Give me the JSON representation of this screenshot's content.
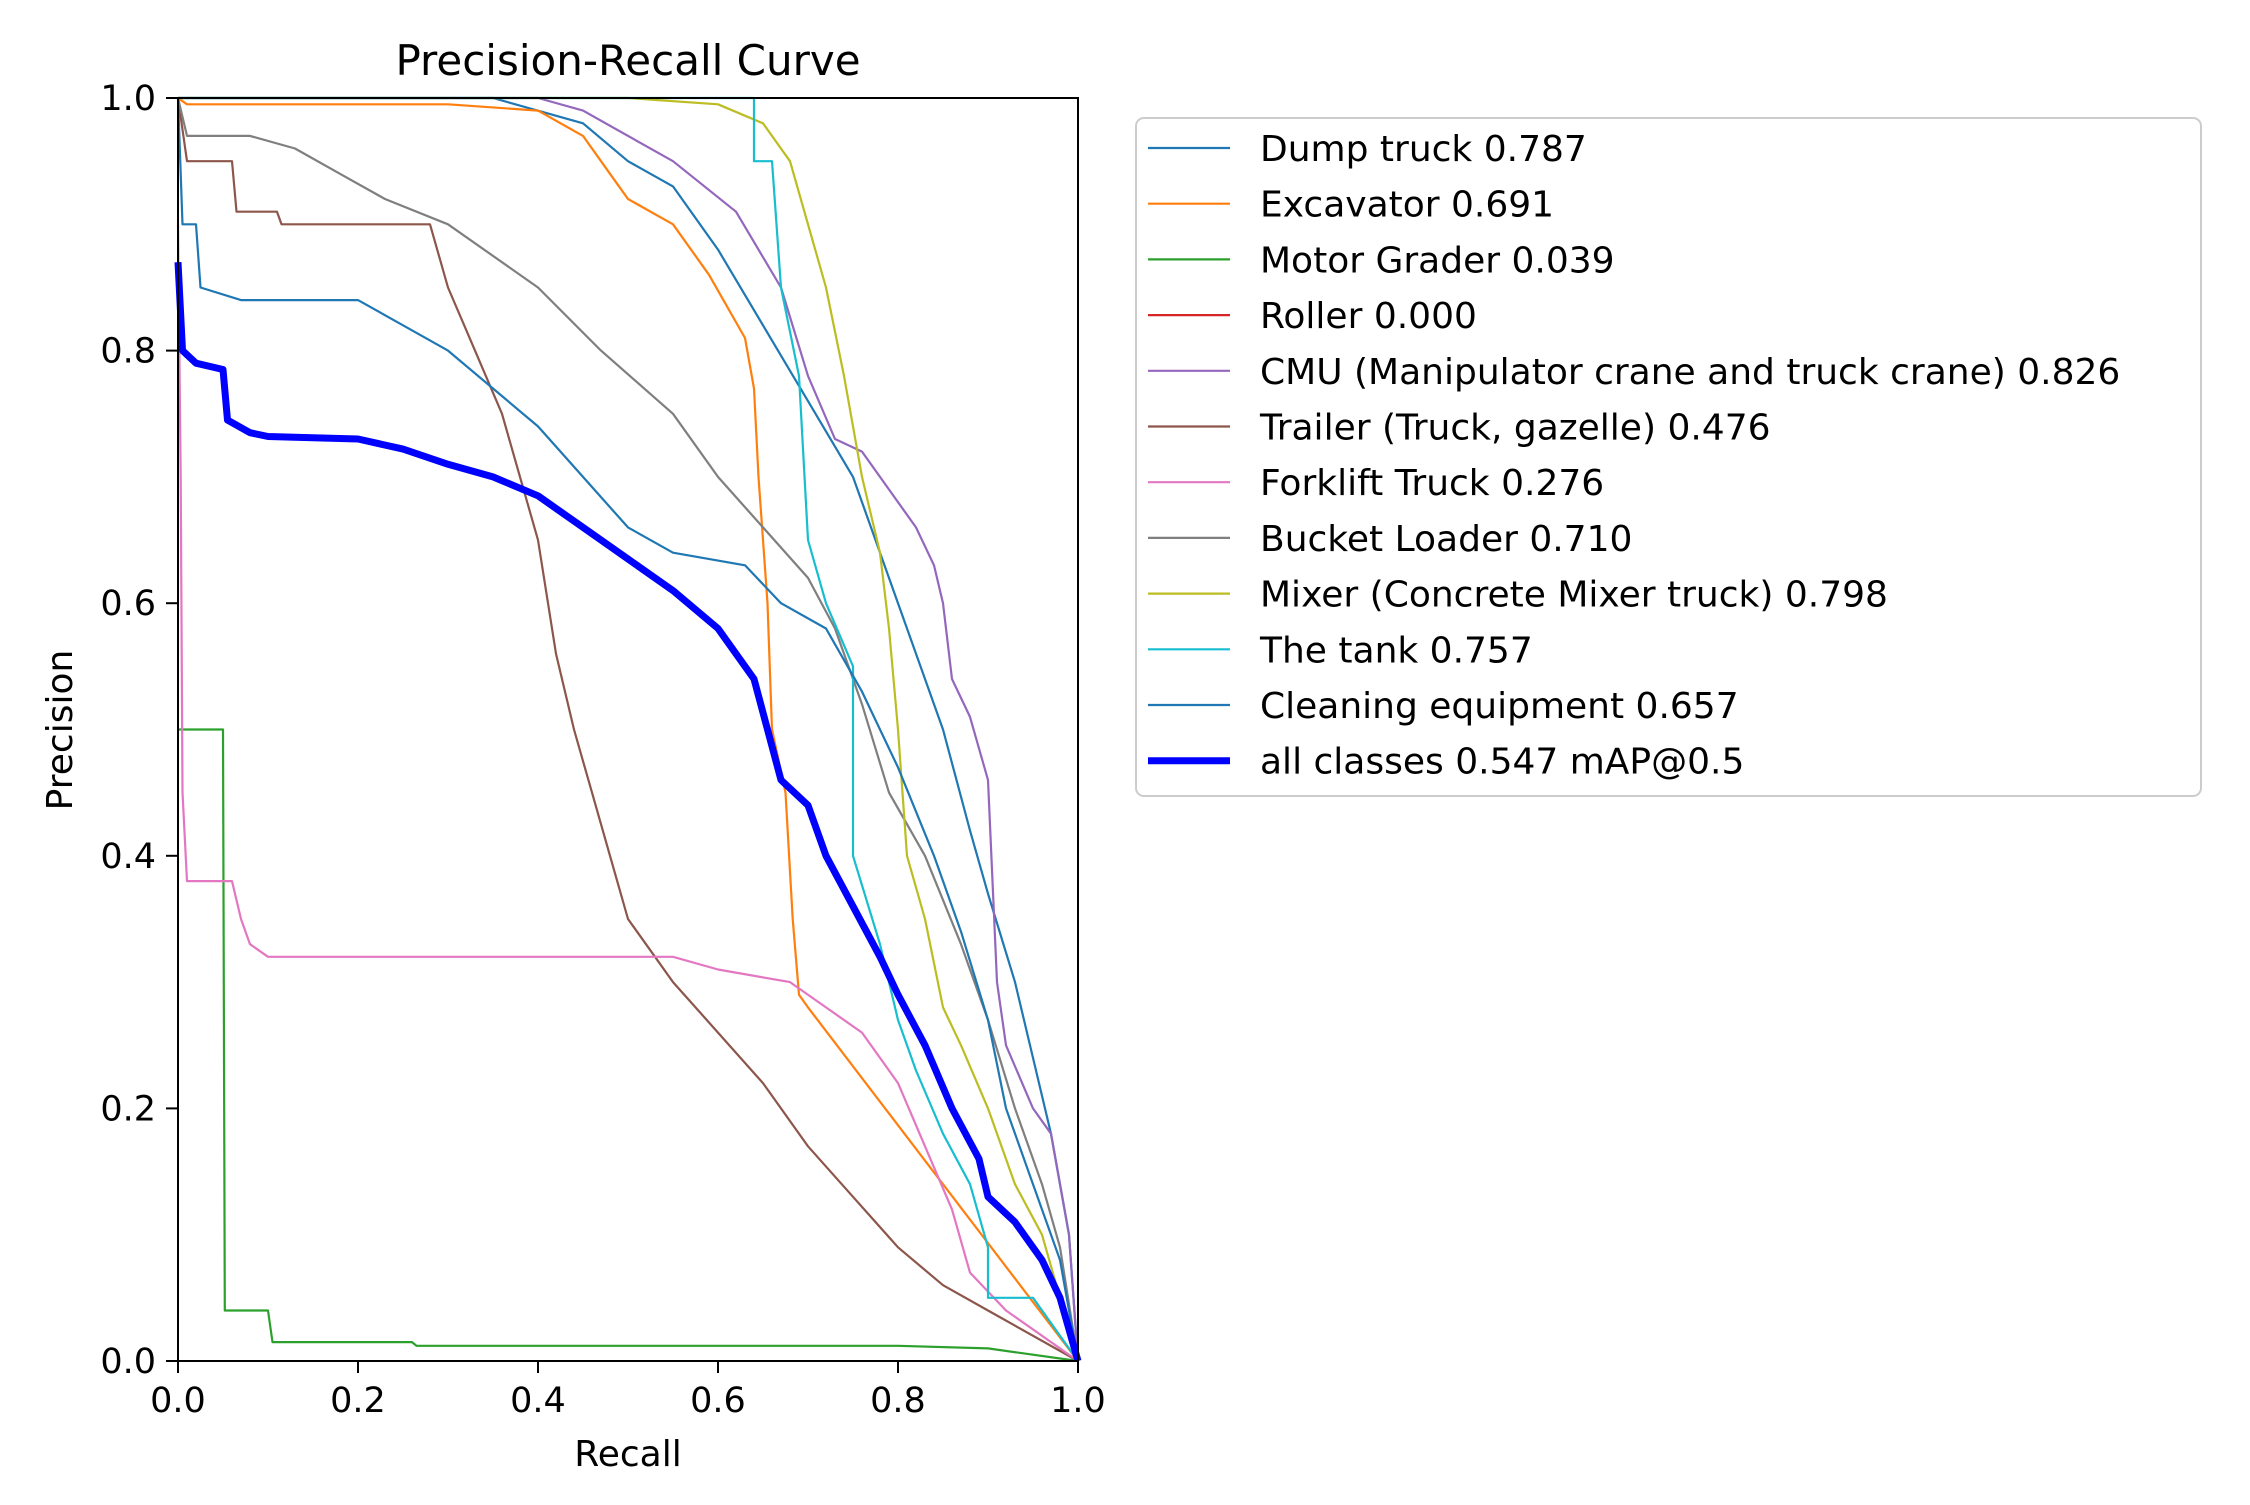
{
  "chart_data": {
    "type": "line",
    "title": "Precision-Recall Curve",
    "xlabel": "Recall",
    "ylabel": "Precision",
    "xlim": [
      0,
      1
    ],
    "ylim": [
      0,
      1
    ],
    "xticks": [
      "0.0",
      "0.2",
      "0.4",
      "0.6",
      "0.8",
      "1.0"
    ],
    "yticks": [
      "0.0",
      "0.2",
      "0.4",
      "0.6",
      "0.8",
      "1.0"
    ],
    "grid": false,
    "legend_position": "outside-right",
    "series": [
      {
        "name": "Dump truck 0.787",
        "color": "#1f77b4",
        "width": "thin",
        "points": [
          [
            0,
            1
          ],
          [
            0.35,
            1
          ],
          [
            0.45,
            0.98
          ],
          [
            0.5,
            0.95
          ],
          [
            0.55,
            0.93
          ],
          [
            0.6,
            0.88
          ],
          [
            0.65,
            0.82
          ],
          [
            0.7,
            0.76
          ],
          [
            0.75,
            0.7
          ],
          [
            0.8,
            0.6
          ],
          [
            0.85,
            0.5
          ],
          [
            0.88,
            0.42
          ],
          [
            0.9,
            0.37
          ],
          [
            0.93,
            0.3
          ],
          [
            0.95,
            0.24
          ],
          [
            0.97,
            0.18
          ],
          [
            0.99,
            0.1
          ],
          [
            1,
            0
          ]
        ]
      },
      {
        "name": "Excavator 0.691",
        "color": "#ff7f0e",
        "width": "thin",
        "points": [
          [
            0,
            1
          ],
          [
            0.01,
            0.995
          ],
          [
            0.3,
            0.995
          ],
          [
            0.4,
            0.99
          ],
          [
            0.45,
            0.97
          ],
          [
            0.48,
            0.94
          ],
          [
            0.5,
            0.92
          ],
          [
            0.55,
            0.9
          ],
          [
            0.59,
            0.86
          ],
          [
            0.63,
            0.81
          ],
          [
            0.64,
            0.77
          ],
          [
            0.645,
            0.7
          ],
          [
            0.65,
            0.65
          ],
          [
            0.655,
            0.6
          ],
          [
            0.66,
            0.5
          ],
          [
            0.675,
            0.45
          ],
          [
            0.683,
            0.35
          ],
          [
            0.69,
            0.29
          ],
          [
            0.7,
            0.28
          ],
          [
            1,
            0
          ]
        ]
      },
      {
        "name": "Motor Grader 0.039",
        "color": "#2ca02c",
        "width": "thin",
        "points": [
          [
            0,
            0.5
          ],
          [
            0.05,
            0.5
          ],
          [
            0.052,
            0.04
          ],
          [
            0.1,
            0.04
          ],
          [
            0.105,
            0.015
          ],
          [
            0.26,
            0.015
          ],
          [
            0.265,
            0.012
          ],
          [
            0.8,
            0.012
          ],
          [
            0.9,
            0.01
          ],
          [
            1,
            0
          ]
        ]
      },
      {
        "name": "Roller 0.000",
        "color": "#d62728",
        "width": "thin",
        "points": []
      },
      {
        "name": "CMU (Manipulator crane and truck crane) 0.826",
        "color": "#9467bd",
        "width": "thin",
        "points": [
          [
            0,
            1
          ],
          [
            0.4,
            1
          ],
          [
            0.45,
            0.99
          ],
          [
            0.55,
            0.95
          ],
          [
            0.62,
            0.91
          ],
          [
            0.67,
            0.85
          ],
          [
            0.7,
            0.78
          ],
          [
            0.73,
            0.73
          ],
          [
            0.76,
            0.72
          ],
          [
            0.79,
            0.69
          ],
          [
            0.82,
            0.66
          ],
          [
            0.84,
            0.63
          ],
          [
            0.85,
            0.6
          ],
          [
            0.86,
            0.54
          ],
          [
            0.88,
            0.51
          ],
          [
            0.9,
            0.46
          ],
          [
            0.91,
            0.3
          ],
          [
            0.92,
            0.25
          ],
          [
            0.95,
            0.2
          ],
          [
            0.97,
            0.18
          ],
          [
            0.99,
            0.1
          ],
          [
            1,
            0
          ]
        ]
      },
      {
        "name": "Trailer (Truck, gazelle) 0.476",
        "color": "#8c564b",
        "width": "thin",
        "points": [
          [
            0,
            1
          ],
          [
            0.01,
            0.95
          ],
          [
            0.06,
            0.95
          ],
          [
            0.065,
            0.91
          ],
          [
            0.11,
            0.91
          ],
          [
            0.115,
            0.9
          ],
          [
            0.28,
            0.9
          ],
          [
            0.3,
            0.85
          ],
          [
            0.33,
            0.8
          ],
          [
            0.36,
            0.75
          ],
          [
            0.38,
            0.7
          ],
          [
            0.4,
            0.65
          ],
          [
            0.42,
            0.56
          ],
          [
            0.44,
            0.5
          ],
          [
            0.46,
            0.45
          ],
          [
            0.48,
            0.4
          ],
          [
            0.5,
            0.35
          ],
          [
            0.53,
            0.32
          ],
          [
            0.55,
            0.3
          ],
          [
            0.6,
            0.26
          ],
          [
            0.65,
            0.22
          ],
          [
            0.7,
            0.17
          ],
          [
            0.75,
            0.13
          ],
          [
            0.8,
            0.09
          ],
          [
            0.85,
            0.06
          ],
          [
            0.9,
            0.04
          ],
          [
            1,
            0
          ]
        ]
      },
      {
        "name": "Forklift Truck 0.276",
        "color": "#e377c2",
        "width": "thin",
        "points": [
          [
            0,
            0.9
          ],
          [
            0.003,
            0.7
          ],
          [
            0.005,
            0.45
          ],
          [
            0.01,
            0.38
          ],
          [
            0.06,
            0.38
          ],
          [
            0.07,
            0.35
          ],
          [
            0.08,
            0.33
          ],
          [
            0.1,
            0.32
          ],
          [
            0.55,
            0.32
          ],
          [
            0.6,
            0.31
          ],
          [
            0.68,
            0.3
          ],
          [
            0.72,
            0.28
          ],
          [
            0.76,
            0.26
          ],
          [
            0.8,
            0.22
          ],
          [
            0.83,
            0.17
          ],
          [
            0.86,
            0.12
          ],
          [
            0.88,
            0.07
          ],
          [
            0.92,
            0.04
          ],
          [
            1,
            0
          ]
        ]
      },
      {
        "name": "Bucket Loader 0.710",
        "color": "#7f7f7f",
        "width": "thin",
        "points": [
          [
            0,
            1
          ],
          [
            0.01,
            0.97
          ],
          [
            0.08,
            0.97
          ],
          [
            0.13,
            0.96
          ],
          [
            0.18,
            0.94
          ],
          [
            0.23,
            0.92
          ],
          [
            0.3,
            0.9
          ],
          [
            0.4,
            0.85
          ],
          [
            0.47,
            0.8
          ],
          [
            0.55,
            0.75
          ],
          [
            0.6,
            0.7
          ],
          [
            0.65,
            0.66
          ],
          [
            0.7,
            0.62
          ],
          [
            0.73,
            0.58
          ],
          [
            0.76,
            0.52
          ],
          [
            0.79,
            0.45
          ],
          [
            0.83,
            0.4
          ],
          [
            0.87,
            0.33
          ],
          [
            0.9,
            0.27
          ],
          [
            0.93,
            0.2
          ],
          [
            0.96,
            0.14
          ],
          [
            0.98,
            0.09
          ],
          [
            1,
            0
          ]
        ]
      },
      {
        "name": "Mixer (Concrete Mixer truck) 0.798",
        "color": "#bcbd22",
        "width": "thin",
        "points": [
          [
            0,
            1
          ],
          [
            0.5,
            1
          ],
          [
            0.6,
            0.995
          ],
          [
            0.65,
            0.98
          ],
          [
            0.68,
            0.95
          ],
          [
            0.7,
            0.9
          ],
          [
            0.72,
            0.85
          ],
          [
            0.74,
            0.78
          ],
          [
            0.76,
            0.7
          ],
          [
            0.78,
            0.64
          ],
          [
            0.79,
            0.58
          ],
          [
            0.8,
            0.5
          ],
          [
            0.81,
            0.4
          ],
          [
            0.83,
            0.35
          ],
          [
            0.85,
            0.28
          ],
          [
            0.87,
            0.25
          ],
          [
            0.9,
            0.2
          ],
          [
            0.93,
            0.14
          ],
          [
            0.96,
            0.1
          ],
          [
            1,
            0
          ]
        ]
      },
      {
        "name": "The tank 0.757",
        "color": "#17becf",
        "width": "thin",
        "points": [
          [
            0,
            1
          ],
          [
            0.64,
            1
          ],
          [
            0.64,
            0.95
          ],
          [
            0.66,
            0.95
          ],
          [
            0.67,
            0.85
          ],
          [
            0.69,
            0.78
          ],
          [
            0.7,
            0.65
          ],
          [
            0.72,
            0.6
          ],
          [
            0.75,
            0.55
          ],
          [
            0.75,
            0.4
          ],
          [
            0.78,
            0.33
          ],
          [
            0.8,
            0.27
          ],
          [
            0.82,
            0.23
          ],
          [
            0.85,
            0.18
          ],
          [
            0.88,
            0.14
          ],
          [
            0.9,
            0.09
          ],
          [
            0.9,
            0.05
          ],
          [
            0.95,
            0.05
          ],
          [
            1,
            0
          ]
        ]
      },
      {
        "name": "Cleaning equipment 0.657",
        "color": "#1f77b4",
        "width": "thin",
        "points": [
          [
            0,
            1
          ],
          [
            0.005,
            0.9
          ],
          [
            0.02,
            0.9
          ],
          [
            0.025,
            0.85
          ],
          [
            0.07,
            0.84
          ],
          [
            0.2,
            0.84
          ],
          [
            0.25,
            0.82
          ],
          [
            0.3,
            0.8
          ],
          [
            0.35,
            0.77
          ],
          [
            0.4,
            0.74
          ],
          [
            0.45,
            0.7
          ],
          [
            0.5,
            0.66
          ],
          [
            0.55,
            0.64
          ],
          [
            0.63,
            0.63
          ],
          [
            0.67,
            0.6
          ],
          [
            0.72,
            0.58
          ],
          [
            0.76,
            0.53
          ],
          [
            0.8,
            0.47
          ],
          [
            0.84,
            0.4
          ],
          [
            0.87,
            0.34
          ],
          [
            0.9,
            0.27
          ],
          [
            0.92,
            0.2
          ],
          [
            0.95,
            0.14
          ],
          [
            0.98,
            0.08
          ],
          [
            1,
            0
          ]
        ]
      },
      {
        "name": "all classes 0.547 mAP@0.5",
        "color": "#0000ff",
        "width": "thick",
        "points": [
          [
            0,
            0.87
          ],
          [
            0.005,
            0.8
          ],
          [
            0.02,
            0.79
          ],
          [
            0.05,
            0.785
          ],
          [
            0.055,
            0.745
          ],
          [
            0.08,
            0.735
          ],
          [
            0.1,
            0.732
          ],
          [
            0.2,
            0.73
          ],
          [
            0.25,
            0.722
          ],
          [
            0.3,
            0.71
          ],
          [
            0.35,
            0.7
          ],
          [
            0.4,
            0.685
          ],
          [
            0.45,
            0.66
          ],
          [
            0.5,
            0.635
          ],
          [
            0.55,
            0.61
          ],
          [
            0.6,
            0.58
          ],
          [
            0.64,
            0.54
          ],
          [
            0.655,
            0.5
          ],
          [
            0.67,
            0.46
          ],
          [
            0.7,
            0.44
          ],
          [
            0.72,
            0.4
          ],
          [
            0.75,
            0.36
          ],
          [
            0.78,
            0.32
          ],
          [
            0.8,
            0.29
          ],
          [
            0.83,
            0.25
          ],
          [
            0.86,
            0.2
          ],
          [
            0.89,
            0.16
          ],
          [
            0.9,
            0.13
          ],
          [
            0.93,
            0.11
          ],
          [
            0.96,
            0.08
          ],
          [
            0.98,
            0.05
          ],
          [
            1,
            0
          ]
        ]
      }
    ]
  }
}
